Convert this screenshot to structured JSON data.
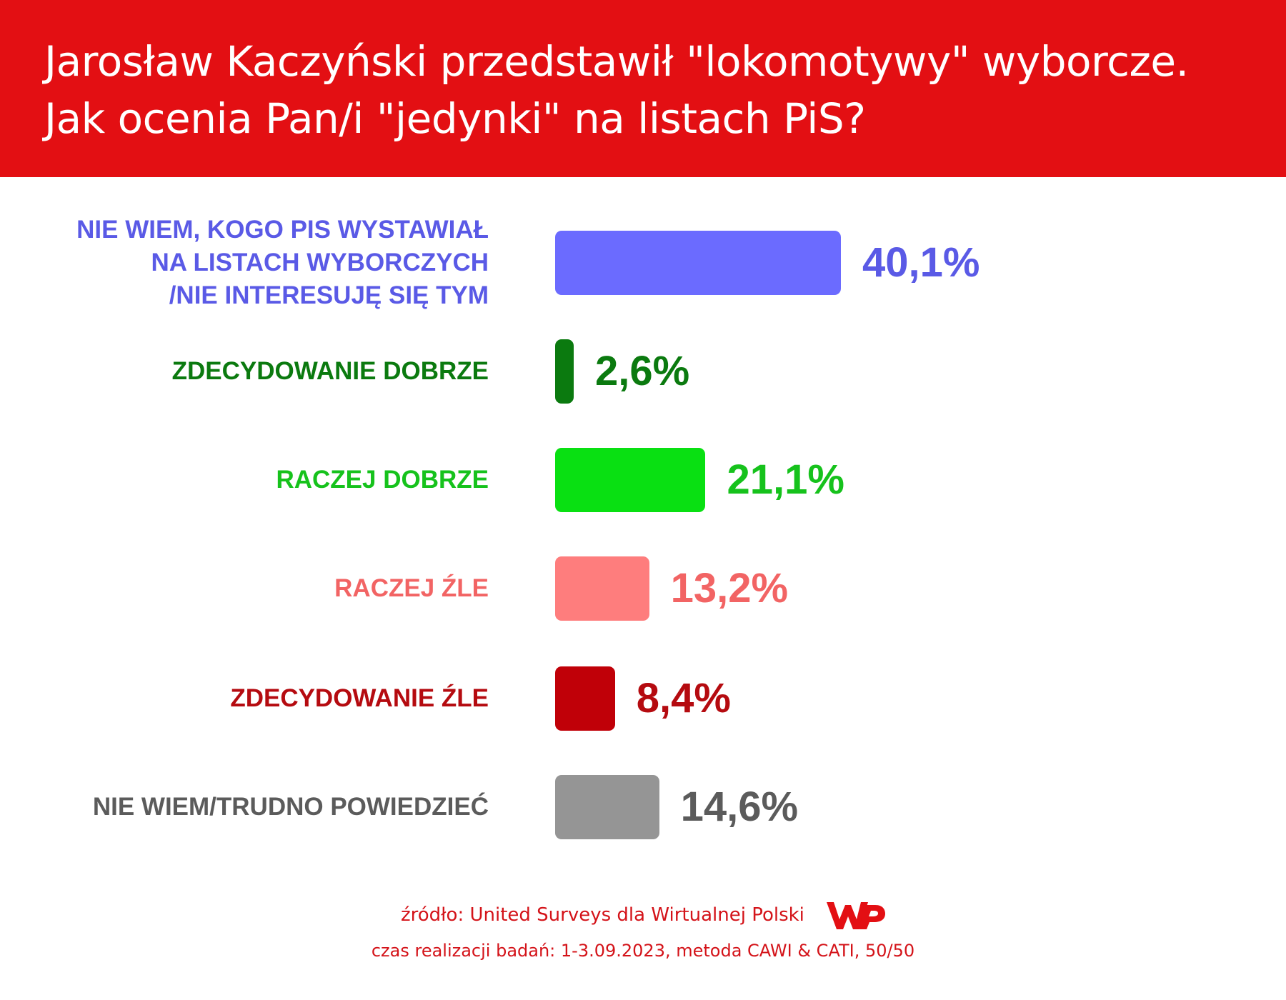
{
  "header": {
    "title_line_1": "Jarosław Kaczyński przedstawił \"lokomotywy\" wyborcze.",
    "title_line_2": "Jak ocenia Pan/i \"jedynki\" na listach PiS?"
  },
  "chart_data": {
    "type": "bar",
    "orientation": "horizontal",
    "categories": [
      "NIE WIEM, KOGO PIS WYSTAWIAŁ NA LISTACH WYBORCZYCH /NIE INTERESUJĘ SIĘ TYM",
      "ZDECYDOWANIE DOBRZE",
      "RACZEJ DOBRZE",
      "RACZEJ ŹLE",
      "ZDECYDOWANIE ŹLE",
      "NIE WIEM/TRUDNO POWIEDZIEĆ"
    ],
    "values": [
      40.1,
      2.6,
      21.1,
      13.2,
      8.4,
      14.6
    ],
    "value_labels": [
      "40,1%",
      "2,6%",
      "21,1%",
      "13,2%",
      "8,4%",
      "14,6%"
    ],
    "title": "Jarosław Kaczyński przedstawił \"lokomotywy\" wyborcze. Jak ocenia Pan/i \"jedynki\" na listach PiS?",
    "grid": false,
    "legend": "none"
  },
  "rows": [
    {
      "label_lines": [
        "NIE WIEM, KOGO PIS WYSTAWIAŁ",
        "NA LISTACH WYBORCZYCH",
        "/NIE INTERESUJĘ SIĘ TYM"
      ],
      "value": 40.1,
      "value_label": "40,1%",
      "bar_color": "#6b6bff",
      "text_color": "#5a5ae6"
    },
    {
      "label_lines": [
        "ZDECYDOWANIE DOBRZE"
      ],
      "value": 2.6,
      "value_label": "2,6%",
      "bar_color": "#0b7a0f",
      "text_color": "#0b7a0f"
    },
    {
      "label_lines": [
        "RACZEJ DOBRZE"
      ],
      "value": 21.1,
      "value_label": "21,1%",
      "bar_color": "#09e012",
      "text_color": "#16c21c"
    },
    {
      "label_lines": [
        "RACZEJ ŹLE"
      ],
      "value": 13.2,
      "value_label": "13,2%",
      "bar_color": "#fe7d7d",
      "text_color": "#f26464"
    },
    {
      "label_lines": [
        "ZDECYDOWANIE ŹLE"
      ],
      "value": 8.4,
      "value_label": "8,4%",
      "bar_color": "#c00008",
      "text_color": "#b50b10"
    },
    {
      "label_lines": [
        "NIE WIEM/TRUDNO POWIEDZIEĆ"
      ],
      "value": 14.6,
      "value_label": "14,6%",
      "bar_color": "#959595",
      "text_color": "#5b5b5b"
    }
  ],
  "footer": {
    "source": "źródło: United Surveys dla Wirtualnej Polski",
    "method": "czas realizacji badań: 1-3.09.2023, metoda CAWI & CATI, 50/50",
    "logo_icon": "wp-logo-icon",
    "logo_color": "#e30f13"
  },
  "colors": {
    "header_bg": "#e30f13",
    "header_text": "#ffffff",
    "footer_text": "#d41319"
  }
}
